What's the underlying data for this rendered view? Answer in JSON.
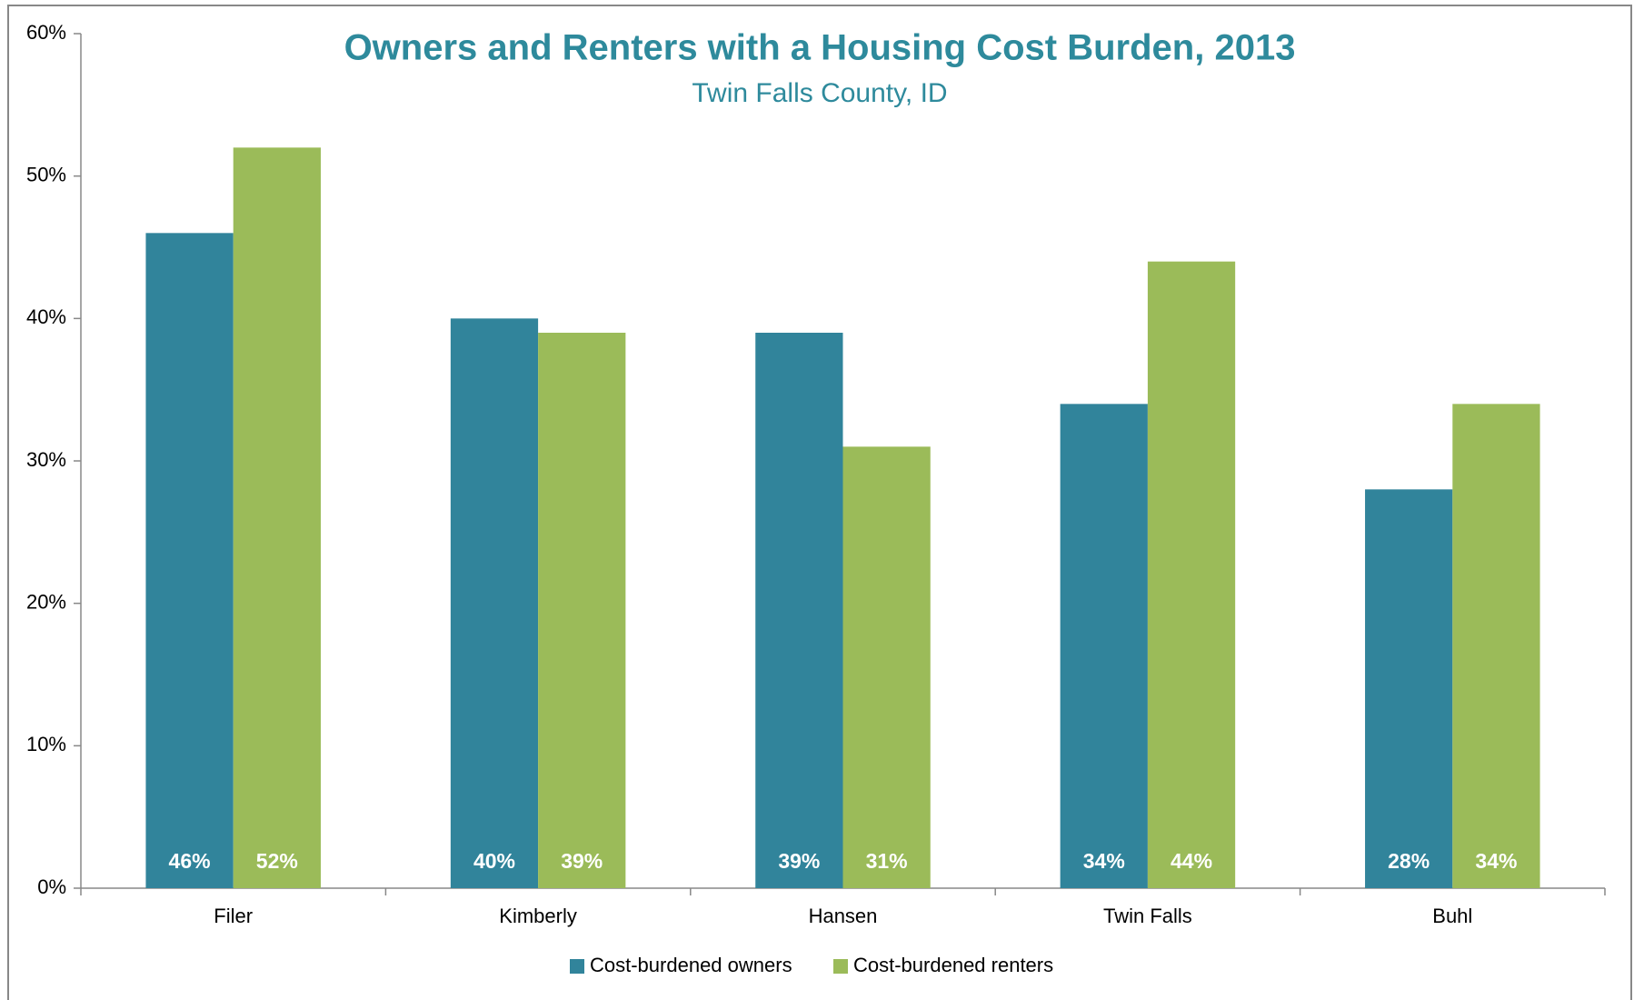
{
  "chart_data": {
    "type": "bar",
    "title": "Owners and Renters with a Housing Cost Burden, 2013",
    "subtitle": "Twin Falls County, ID",
    "categories": [
      "Filer",
      "Kimberly",
      "Hansen",
      "Twin Falls",
      "Buhl"
    ],
    "series": [
      {
        "name": "Cost-burdened owners",
        "color": "#31849b",
        "values": [
          46,
          40,
          39,
          34,
          28
        ],
        "value_labels": [
          "46%",
          "40%",
          "39%",
          "34%",
          "28%"
        ]
      },
      {
        "name": "Cost-burdened renters",
        "color": "#9bbb59",
        "values": [
          52,
          39,
          31,
          44,
          34
        ],
        "value_labels": [
          "52%",
          "39%",
          "31%",
          "44%",
          "34%"
        ]
      }
    ],
    "ylim": [
      0,
      60
    ],
    "yticks": [
      {
        "value": 0,
        "label": "0%"
      },
      {
        "value": 10,
        "label": "10%"
      },
      {
        "value": 20,
        "label": "20%"
      },
      {
        "value": 30,
        "label": "30%"
      },
      {
        "value": 40,
        "label": "40%"
      },
      {
        "value": 50,
        "label": "50%"
      },
      {
        "value": 60,
        "label": "60%"
      }
    ],
    "grid": false,
    "legend": "bottom"
  }
}
